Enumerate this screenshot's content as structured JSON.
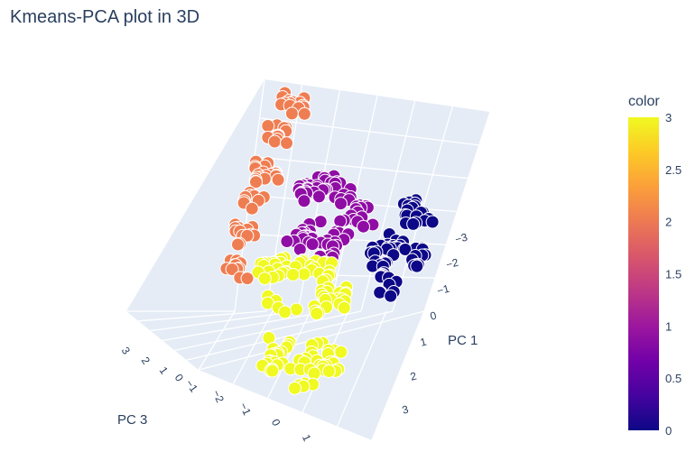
{
  "title": "Kmeans-PCA plot in 3D",
  "chart_data": {
    "type": "scatter3d",
    "title": "Kmeans-PCA plot in 3D",
    "axes": {
      "x": {
        "label": "PC 1",
        "ticks": [
          "−3",
          "−2",
          "−1",
          "0",
          "1",
          "2",
          "3"
        ]
      },
      "y": {
        "label": "",
        "ticks": [
          "−2",
          "−1",
          "0",
          "1"
        ]
      },
      "z": {
        "label": "PC 3",
        "ticks": [
          "3",
          "2",
          "1",
          "0",
          "−1"
        ]
      }
    },
    "colorbar": {
      "title": "color",
      "range": [
        0,
        3
      ],
      "ticks": [
        "3",
        "2.5",
        "2",
        "1.5",
        "1",
        "0.5",
        "0"
      ],
      "colors": [
        "#0d0887",
        "#46039f",
        "#7201a8",
        "#9c179e",
        "#bd3786",
        "#d8576b",
        "#ed7953",
        "#fb9f3a",
        "#fdca26",
        "#f0f921"
      ]
    },
    "clusters": [
      {
        "color_value": 0,
        "color": "#0d0887",
        "pc1_range": [
          -3,
          -0.5
        ]
      },
      {
        "color_value": 1,
        "color": "#8f0da4",
        "pc1_range": [
          -3,
          0
        ]
      },
      {
        "color_value": 2,
        "color": "#ef7d52",
        "pc1_range": [
          -3,
          0
        ]
      },
      {
        "color_value": 3,
        "color": "#f0f921",
        "pc1_range": [
          0,
          3
        ]
      }
    ],
    "grid": true,
    "legend": "colorbar right"
  }
}
